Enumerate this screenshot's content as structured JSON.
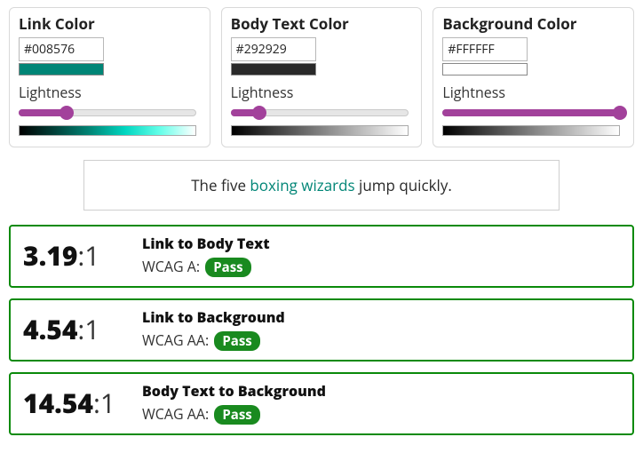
{
  "cards": [
    {
      "title": "Link Color",
      "hex": "#008576",
      "swatch_color": "#008576",
      "lightness_label": "Lightness",
      "slider_pct": 27,
      "gradient_css": "linear-gradient(to right, #000000 0%, #003a33 18%, #008576 40%, #00d6c0 60%, #66ffe9 80%, #ffffff 100%)"
    },
    {
      "title": "Body Text Color",
      "hex": "#292929",
      "swatch_color": "#292929",
      "lightness_label": "Lightness",
      "slider_pct": 16,
      "gradient_css": "linear-gradient(to right, #000000 0%, #292929 16%, #808080 50%, #d9d9d9 85%, #ffffff 100%)"
    },
    {
      "title": "Background Color",
      "hex": "#FFFFFF",
      "swatch_color": "#FFFFFF",
      "lightness_label": "Lightness",
      "slider_pct": 100,
      "gradient_css": "linear-gradient(to right, #000000 0%, #808080 50%, #ffffff 100%)"
    }
  ],
  "preview": {
    "pre": "The five ",
    "link": "boxing wizards",
    "post": " jump quickly.",
    "link_color": "#008576",
    "text_color": "#292929",
    "bg_color": "#FFFFFF"
  },
  "results": [
    {
      "ratio": "3.19",
      "suffix": ":1",
      "title": "Link to Body Text",
      "level": "WCAG A:",
      "badge": "Pass",
      "border": "#0a8a0a",
      "badge_bg": "#198a1f"
    },
    {
      "ratio": "4.54",
      "suffix": ":1",
      "title": "Link to Background",
      "level": "WCAG AA:",
      "badge": "Pass",
      "border": "#0a8a0a",
      "badge_bg": "#198a1f"
    },
    {
      "ratio": "14.54",
      "suffix": ":1",
      "title": "Body Text to Background",
      "level": "WCAG AA:",
      "badge": "Pass",
      "border": "#0a8a0a",
      "badge_bg": "#198a1f"
    }
  ],
  "style": {
    "slider_accent": "#a2419b"
  }
}
